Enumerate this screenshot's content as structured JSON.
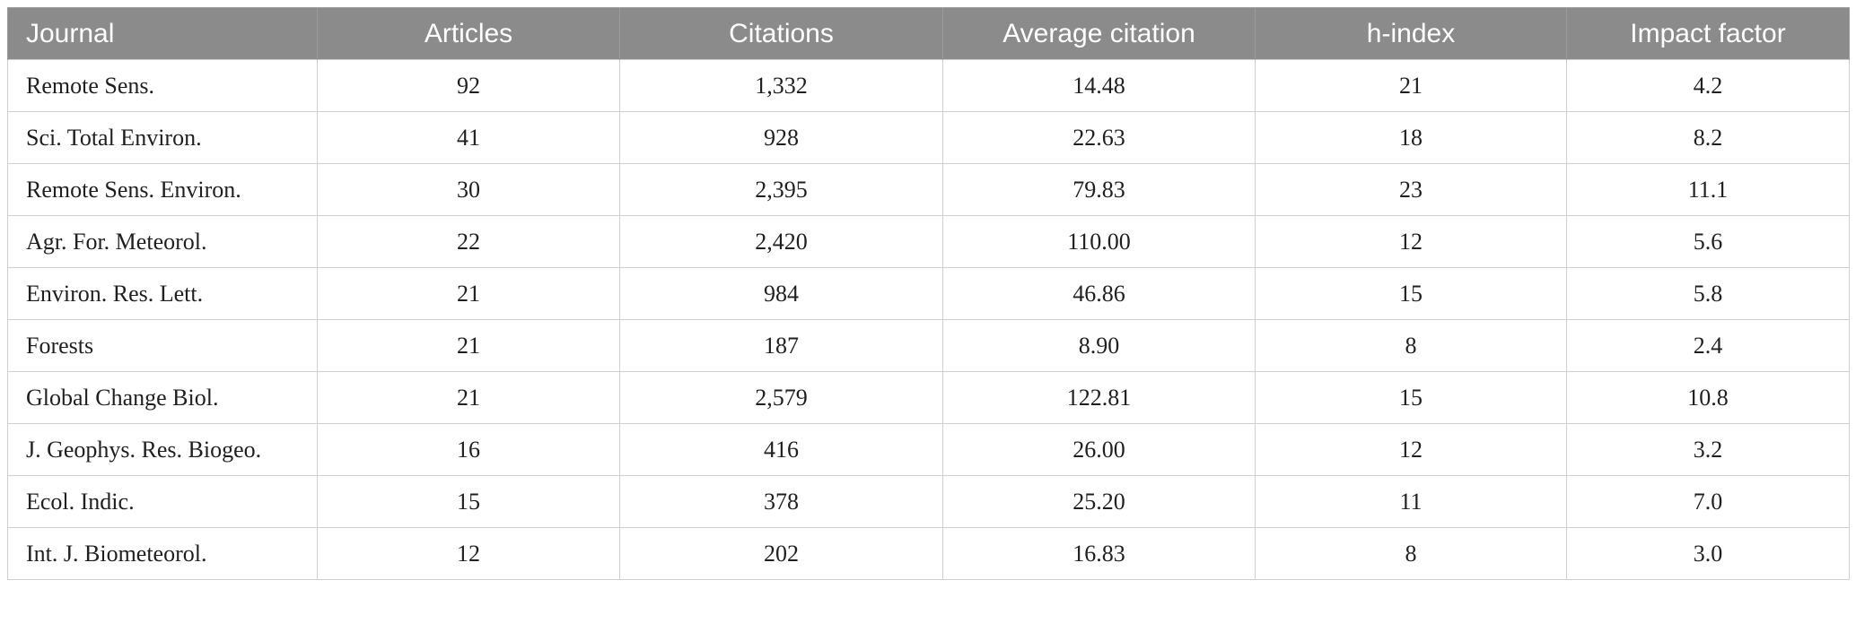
{
  "colors": {
    "header_bg": "#8b8b8b",
    "header_text": "#ffffff",
    "grid_line": "#cfcfcf",
    "body_text": "#1f1f1f"
  },
  "table": {
    "columns": [
      {
        "key": "journal",
        "label": "Journal"
      },
      {
        "key": "articles",
        "label": "Articles"
      },
      {
        "key": "citations",
        "label": "Citations"
      },
      {
        "key": "average-citation",
        "label": "Average citation"
      },
      {
        "key": "h-index",
        "label": "h-index"
      },
      {
        "key": "impact-factor",
        "label": "Impact factor"
      }
    ],
    "rows": [
      [
        "Remote Sens.",
        "92",
        "1,332",
        "14.48",
        "21",
        "4.2"
      ],
      [
        "Sci. Total Environ.",
        "41",
        "928",
        "22.63",
        "18",
        "8.2"
      ],
      [
        "Remote Sens. Environ.",
        "30",
        "2,395",
        "79.83",
        "23",
        "11.1"
      ],
      [
        "Agr. For. Meteorol.",
        "22",
        "2,420",
        "110.00",
        "12",
        "5.6"
      ],
      [
        "Environ. Res. Lett.",
        "21",
        "984",
        "46.86",
        "15",
        "5.8"
      ],
      [
        "Forests",
        "21",
        "187",
        "8.90",
        "8",
        "2.4"
      ],
      [
        "Global Change Biol.",
        "21",
        "2,579",
        "122.81",
        "15",
        "10.8"
      ],
      [
        "J. Geophys. Res. Biogeo.",
        "16",
        "416",
        "26.00",
        "12",
        "3.2"
      ],
      [
        "Ecol. Indic.",
        "15",
        "378",
        "25.20",
        "11",
        "7.0"
      ],
      [
        "Int. J. Biometeorol.",
        "12",
        "202",
        "16.83",
        "8",
        "3.0"
      ]
    ]
  }
}
